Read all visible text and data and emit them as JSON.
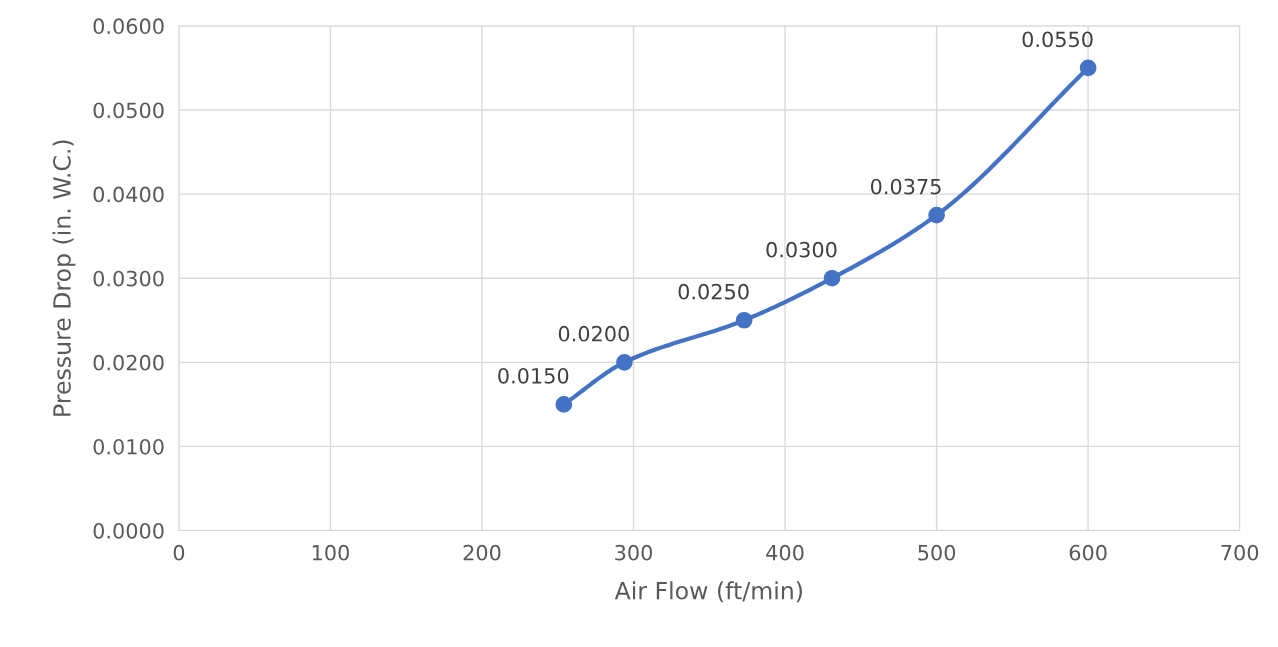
{
  "chart_data": {
    "type": "line",
    "xlabel": "Air Flow (ft/min)",
    "ylabel": "Pressure Drop (in. W.C.)",
    "x": [
      254,
      294,
      373,
      431,
      500,
      600
    ],
    "series": [
      {
        "color": "#4472c4",
        "values": [
          0.015,
          0.02,
          0.025,
          0.03,
          0.0375,
          0.055
        ],
        "value_labels": [
          "0.0150",
          "0.0200",
          "0.0250",
          "0.0300",
          "0.0375",
          "0.0550"
        ]
      }
    ],
    "xlim": [
      0,
      700
    ],
    "xticks": [
      0,
      100,
      200,
      300,
      400,
      500,
      600,
      700
    ],
    "ylim": [
      0,
      0.06
    ],
    "yticks": [
      {
        "value": 0,
        "label": "0.0000"
      },
      {
        "value": 0.01,
        "label": "0.0100"
      },
      {
        "value": 0.02,
        "label": "0.0200"
      },
      {
        "value": 0.03,
        "label": "0.0300"
      },
      {
        "value": 0.04,
        "label": "0.0400"
      },
      {
        "value": 0.05,
        "label": "0.0500"
      },
      {
        "value": 0.06,
        "label": "0.0600"
      }
    ],
    "grid": true,
    "marker": "circle",
    "line_style": "solid",
    "legend": false
  }
}
